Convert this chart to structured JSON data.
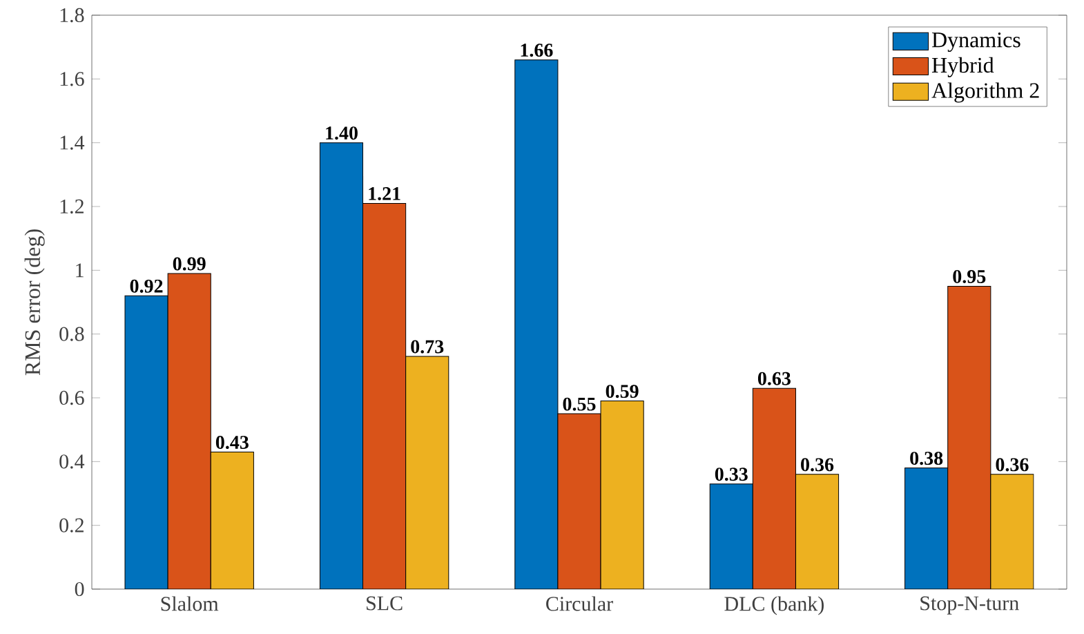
{
  "chart_data": {
    "type": "bar",
    "ylabel": "RMS error (deg)",
    "categories": [
      "Slalom",
      "SLC",
      "Circular",
      "DLC (bank)",
      "Stop-N-turn"
    ],
    "series": [
      {
        "name": "Dynamics",
        "color": "#0072bd",
        "values": [
          0.92,
          1.4,
          1.66,
          0.33,
          0.38
        ],
        "value_labels": [
          "0.92",
          "1.40",
          "1.66",
          "0.33",
          "0.38"
        ]
      },
      {
        "name": "Hybrid",
        "color": "#d95319",
        "values": [
          0.99,
          1.21,
          0.55,
          0.63,
          0.95
        ],
        "value_labels": [
          "0.99",
          "1.21",
          "0.55",
          "0.63",
          "0.95"
        ]
      },
      {
        "name": "Algorithm 2",
        "color": "#edb120",
        "values": [
          0.43,
          0.73,
          0.59,
          0.36,
          0.36
        ],
        "value_labels": [
          "0.43",
          "0.73",
          "0.59",
          "0.36",
          "0.36"
        ]
      }
    ],
    "ylim": [
      0,
      1.8
    ],
    "yticks": [
      0,
      0.2,
      0.4,
      0.6,
      0.8,
      1,
      1.2,
      1.4,
      1.6,
      1.8
    ],
    "legend": "top right",
    "grid": false
  }
}
